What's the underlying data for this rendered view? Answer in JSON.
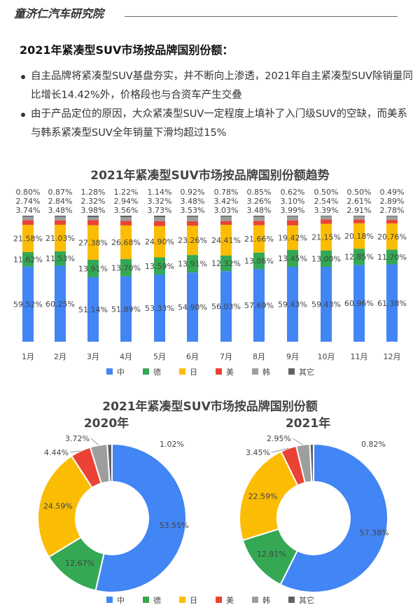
{
  "header": {
    "brand": "童济仁汽车研究院"
  },
  "heading": "2021年紧凑型SUV市场按品牌国别份额：",
  "bullets": [
    "自主品牌将紧凑型SUV基盘夯实，并不断向上渗透，2021年自主紧凑型SUV除销量同比增长14.42%外，价格段也与合资车产生交叠",
    "由于产品定位的原因，大众紧凑型SUV一定程度上填补了入门级SUV的空缺，而美系与韩系紧凑型SUV全年销量下滑均超过15%"
  ],
  "colors": {
    "中": "#4285F4",
    "德": "#34A853",
    "日": "#FBBC04",
    "美": "#EA4335",
    "韩": "#9E9E9E",
    "其它": "#616161"
  },
  "chart_data": [
    {
      "type": "bar",
      "stacked": true,
      "title": "2021年紧凑型SUV市场按品牌国别份额趋势",
      "categories": [
        "1月",
        "2月",
        "3月",
        "4月",
        "5月",
        "6月",
        "7月",
        "8月",
        "9月",
        "10月",
        "11月",
        "12月"
      ],
      "unit": "%",
      "ylim": [
        0,
        100
      ],
      "legend_position": "bottom",
      "series": [
        {
          "name": "中",
          "values": [
            59.52,
            60.25,
            51.14,
            51.89,
            53.33,
            54.9,
            56.03,
            57.69,
            59.43,
            59.43,
            60.96,
            61.38
          ]
        },
        {
          "name": "德",
          "values": [
            11.62,
            11.53,
            13.91,
            13.7,
            13.59,
            13.91,
            12.32,
            13.06,
            13.45,
            13.0,
            12.85,
            11.7
          ]
        },
        {
          "name": "日",
          "values": [
            21.58,
            21.03,
            27.38,
            26.68,
            24.9,
            23.26,
            24.41,
            21.66,
            19.42,
            21.15,
            20.18,
            20.76
          ]
        },
        {
          "name": "美",
          "values": [
            3.74,
            3.48,
            3.98,
            3.56,
            3.73,
            3.53,
            3.03,
            3.48,
            3.99,
            3.39,
            2.91,
            2.78
          ]
        },
        {
          "name": "韩",
          "values": [
            2.74,
            2.84,
            2.32,
            2.94,
            3.32,
            3.48,
            3.42,
            3.26,
            3.1,
            2.54,
            2.61,
            2.89
          ]
        },
        {
          "name": "其它",
          "values": [
            0.8,
            0.87,
            1.28,
            1.22,
            1.14,
            0.92,
            0.78,
            0.85,
            0.62,
            0.5,
            0.5,
            0.49
          ]
        }
      ]
    },
    {
      "type": "pie",
      "donut": true,
      "title": "2021年紧凑型SUV市场按品牌国别份额",
      "legend_position": "bottom",
      "categories": [
        "中",
        "德",
        "日",
        "美",
        "韩",
        "其它"
      ],
      "pies": [
        {
          "name": "2020年",
          "values": [
            53.55,
            12.67,
            24.59,
            4.44,
            3.72,
            1.02
          ]
        },
        {
          "name": "2021年",
          "values": [
            57.38,
            12.81,
            22.59,
            3.45,
            2.95,
            0.82
          ]
        }
      ]
    }
  ]
}
